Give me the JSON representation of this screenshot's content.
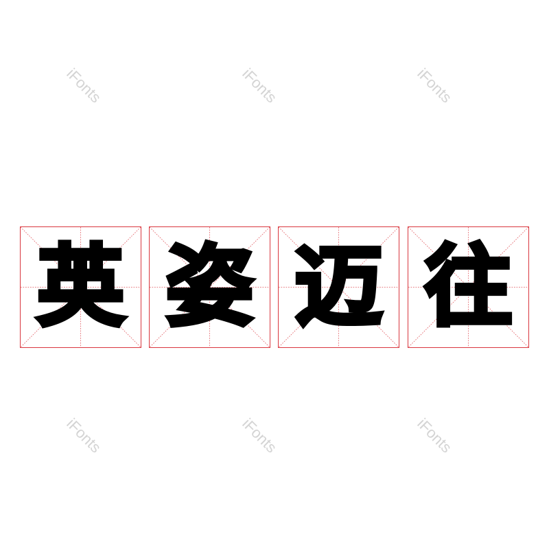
{
  "watermark": "iFonts",
  "characters": [
    "英",
    "姿",
    "迈",
    "往"
  ],
  "colors": {
    "grid": "#d9363e",
    "text": "#000000",
    "watermark": "#d4d4d4"
  }
}
